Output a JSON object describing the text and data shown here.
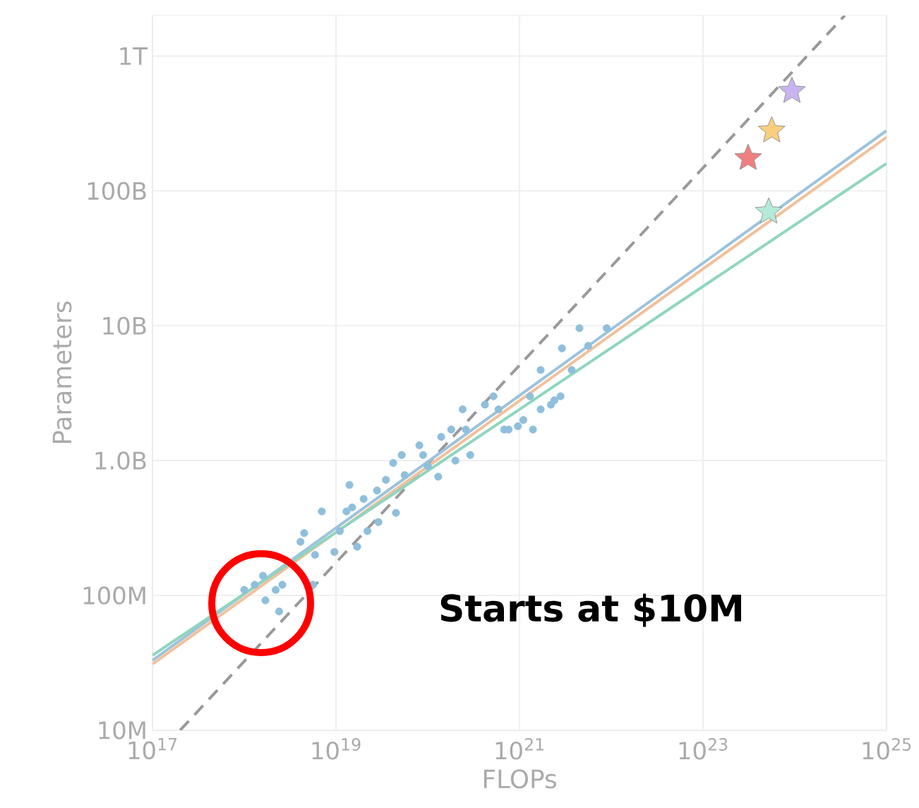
{
  "chart_data": {
    "type": "scatter",
    "xlabel": "FLOPs",
    "ylabel": "Parameters",
    "log": "xy",
    "grid": true,
    "annotations": [
      "Starts at $10M"
    ],
    "xlim": [
      1e+17,
      1e+25
    ],
    "ylim": [
      10000000.0,
      2000000000000.0
    ],
    "xticks": [
      {
        "value": 1e+17,
        "label": "10$^{17}$"
      },
      {
        "value": 1e+19,
        "label": "10$^{19}$"
      },
      {
        "value": 1e+21,
        "label": "10$^{21}$"
      },
      {
        "value": 1e+23,
        "label": "10$^{23}$"
      },
      {
        "value": 1e+25,
        "label": "10$^{25}$"
      }
    ],
    "yticks": [
      {
        "value": 10000000.0,
        "label": "10M"
      },
      {
        "value": 100000000.0,
        "label": "100M"
      },
      {
        "value": 1000000000.0,
        "label": "1.0B"
      },
      {
        "value": 10000000000.0,
        "label": "10B"
      },
      {
        "value": 100000000000.0,
        "label": "100B"
      },
      {
        "value": 1000000000000.0,
        "label": "1T"
      }
    ],
    "series": [
      {
        "type": "line",
        "color": "#999999",
        "line_style": "dashed",
        "marker": "none",
        "x": [
          2e+17,
          3.5e+24
        ],
        "values": [
          10000000.0,
          2000000000000.0
        ]
      },
      {
        "type": "line",
        "color": "#9cc3dc",
        "line_style": "solid",
        "marker": "none",
        "x": [
          1e+17,
          1e+25
        ],
        "values": [
          33000000.0,
          280000000000.0
        ]
      },
      {
        "type": "line",
        "color": "#f2c09a",
        "line_style": "solid",
        "marker": "none",
        "x": [
          1e+17,
          1e+25
        ],
        "values": [
          31000000.0,
          250000000000.0
        ]
      },
      {
        "type": "line",
        "color": "#8fd5bf",
        "line_style": "solid",
        "marker": "none",
        "x": [
          1e+17,
          1e+25
        ],
        "values": [
          36000000.0,
          160000000000.0
        ]
      },
      {
        "color": "#8fbfdc",
        "marker": "circle",
        "x": [
          1e+18,
          1.3e+18,
          1.6e+18,
          1.7e+18,
          2.2e+18,
          2.4e+18,
          2.6e+18,
          4.5e+18,
          4.1e+18,
          5.6e+18,
          5.9e+18,
          7e+18,
          9.6e+18,
          1.1e+19,
          1.3e+19,
          1.4e+19,
          1.5e+19,
          1.7e+19,
          2e+19,
          2.2e+19,
          2.8e+19,
          2.9e+19,
          3.5e+19,
          4.2e+19,
          4.5e+19,
          5.2e+19,
          5.6e+19,
          8.1e+19,
          8.9e+19,
          1e+20,
          1.3e+20,
          1.4e+20,
          1.8e+20,
          2e+20,
          2.4e+20,
          2.6e+20,
          2.9e+20,
          4.2e+20,
          5.9e+20,
          6.8e+20,
          9.6e+20,
          1.4e+21,
          1.7e+21,
          2.4e+21,
          4.5e+21,
          8.9e+21,
          2.9e+21,
          5.6e+21,
          1.7e+21,
          3.7e+21,
          2.8e+21,
          2.2e+21,
          1.3e+21,
          5.2e+20,
          1.1e+21,
          7.6e+20
        ],
        "values": [
          110000000.0,
          120000000.0,
          140000000.0,
          92000000.0,
          110000000.0,
          76000000.0,
          120000000.0,
          290000000.0,
          250000000.0,
          120000000.0,
          200000000.0,
          420000000.0,
          210000000.0,
          300000000.0,
          420000000.0,
          660000000.0,
          450000000.0,
          230000000.0,
          520000000.0,
          300000000.0,
          600000000.0,
          350000000.0,
          720000000.0,
          960000000.0,
          410000000.0,
          1100000000.0,
          780000000.0,
          1300000000.0,
          1100000000.0,
          910000000.0,
          760000000.0,
          1500000000.0,
          1700000000.0,
          1000000000.0,
          2400000000.0,
          1700000000.0,
          1100000000.0,
          2600000000.0,
          2400000000.0,
          1700000000.0,
          1800000000.0,
          1700000000.0,
          2400000000.0,
          2800000000.0,
          9600000000.0,
          9600000000.0,
          6800000000.0,
          7100000000.0,
          4700000000.0,
          4700000000.0,
          3000000000.0,
          2600000000.0,
          3000000000.0,
          3000000000.0,
          2000000000.0,
          1700000000.0
        ]
      },
      {
        "color": "#c9b3f0",
        "marker": "star",
        "x": [
          9.3e+23
        ],
        "values": [
          550000000000.0
        ]
      },
      {
        "color": "#f9cf7f",
        "marker": "star",
        "x": [
          5.6e+23
        ],
        "values": [
          280000000000.0
        ]
      },
      {
        "color": "#f08080",
        "marker": "star",
        "x": [
          3.1e+23
        ],
        "values": [
          175000000000.0
        ]
      },
      {
        "color": "#b3ead8",
        "marker": "star",
        "x": [
          5.2e+23
        ],
        "values": [
          70000000000.0
        ]
      }
    ]
  }
}
